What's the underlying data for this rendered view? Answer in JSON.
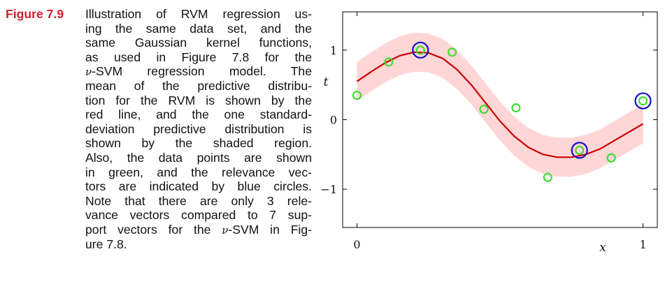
{
  "caption": {
    "figure_label": "Figure 7.9",
    "lines": [
      "Illustration of RVM regression us-",
      "ing the same data set, and the",
      "same Gaussian kernel functions,",
      "as used in Figure 7.8 for the",
      [
        "ν",
        "-SVM regression model. The"
      ],
      "mean of the predictive distribu-",
      "tion for the RVM is shown by the",
      "red line, and the one standard-",
      "deviation predictive distribution is",
      "shown by the shaded region.",
      "Also, the data points are shown",
      "in green, and the relevance vec-",
      "tors are indicated by blue circles.",
      "Note that there are only 3 rele-",
      "vance vectors compared to 7 sup-",
      [
        "port vectors for the ",
        "ν",
        "-SVM in Fig-"
      ],
      "ure 7.8."
    ]
  },
  "chart_data": {
    "type": "line",
    "xlabel": "x",
    "ylabel": "t",
    "xlim": [
      -0.05,
      1.05
    ],
    "ylim": [
      -1.55,
      1.55
    ],
    "xticks": [
      0,
      1
    ],
    "xtick_labels": [
      "0",
      "1"
    ],
    "yticks": [
      1,
      0,
      -1
    ],
    "ytick_labels": [
      "1",
      "0",
      "−1"
    ],
    "grid": false,
    "mean_curve": {
      "color": "#cc0000",
      "x": [
        0,
        0.05,
        0.1,
        0.15,
        0.2,
        0.25,
        0.3,
        0.35,
        0.4,
        0.45,
        0.5,
        0.55,
        0.6,
        0.65,
        0.7,
        0.75,
        0.8,
        0.85,
        0.9,
        0.95,
        1.0
      ],
      "y": [
        0.55,
        0.69,
        0.82,
        0.92,
        0.97,
        0.96,
        0.88,
        0.72,
        0.5,
        0.24,
        -0.02,
        -0.24,
        -0.4,
        -0.5,
        -0.54,
        -0.54,
        -0.5,
        -0.42,
        -0.3,
        -0.18,
        -0.06
      ]
    },
    "std_band": {
      "color": "#ffd6d6",
      "halfwidth": 0.28
    },
    "data_points": {
      "color": "#33dd22",
      "x": [
        0.0,
        0.111,
        0.222,
        0.333,
        0.444,
        0.556,
        0.667,
        0.778,
        0.889,
        1.0
      ],
      "y": [
        0.35,
        0.83,
        1.0,
        0.97,
        0.15,
        0.17,
        -0.83,
        -0.44,
        -0.55,
        0.27
      ]
    },
    "relevance_vectors": {
      "color": "#1111cc",
      "x": [
        0.222,
        0.778,
        1.0
      ],
      "y": [
        1.0,
        -0.44,
        0.27
      ]
    }
  }
}
